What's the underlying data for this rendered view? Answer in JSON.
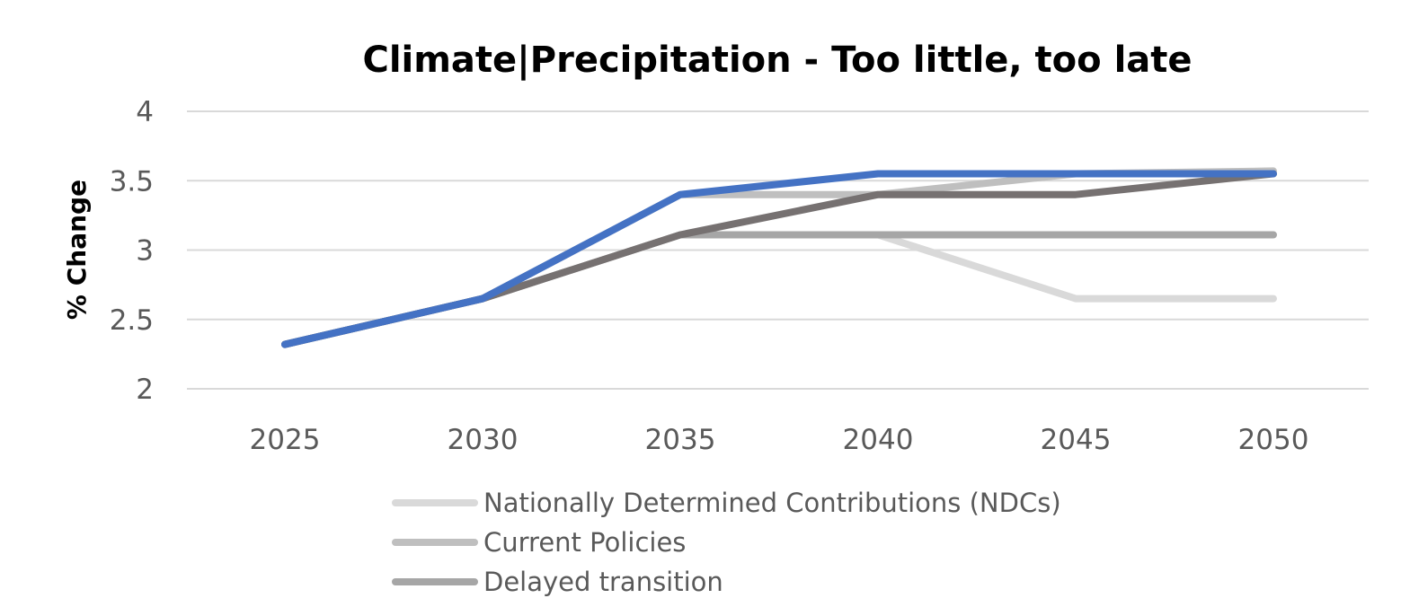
{
  "chart_data": {
    "type": "line",
    "title": "Climate|Precipitation - Too little, too late",
    "ylabel": "% Change",
    "xlabel": "",
    "categories": [
      "2025",
      "2030",
      "2035",
      "2040",
      "2045",
      "2050"
    ],
    "ylim": [
      2,
      4
    ],
    "yticks": [
      "2",
      "2.5",
      "3",
      "3.5",
      "4"
    ],
    "grid": true,
    "legend_position": "bottom",
    "series": [
      {
        "name": "Nationally Determined Contributions (NDCs)",
        "color": "#d9d9d9",
        "values": [
          2.32,
          2.65,
          3.11,
          3.11,
          2.65,
          2.65
        ],
        "in_legend": true
      },
      {
        "name": "Current Policies",
        "color": "#bfbfbf",
        "values": [
          2.32,
          2.65,
          3.4,
          3.4,
          3.55,
          3.57
        ],
        "in_legend": true
      },
      {
        "name": "Delayed transition",
        "color": "#a6a6a6",
        "values": [
          2.32,
          2.65,
          3.11,
          3.11,
          3.11,
          3.11
        ],
        "in_legend": true
      },
      {
        "name": "",
        "color": "#767171",
        "values": [
          2.32,
          2.65,
          3.11,
          3.4,
          3.4,
          3.55
        ],
        "in_legend": false
      },
      {
        "name": "",
        "color": "#4472c4",
        "values": [
          2.32,
          2.65,
          3.4,
          3.55,
          3.55,
          3.55
        ],
        "in_legend": false
      }
    ]
  }
}
